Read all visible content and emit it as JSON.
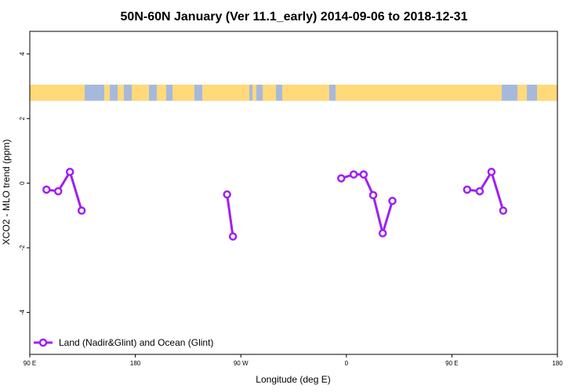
{
  "chart_data": {
    "type": "line",
    "title": "50N-60N January (Ver 11.1_early)   2014-09-06 to 2018-12-31",
    "xlabel": "Longitude (deg E)",
    "ylabel": "XCO2 - MLO trend (ppm)",
    "xlim": [
      90,
      450
    ],
    "ylim": [
      -5.3,
      4.7
    ],
    "x_ticks": [
      {
        "value": 90,
        "label": "90 E"
      },
      {
        "value": 162,
        "label": "180"
      },
      {
        "value": 234,
        "label": "90 W"
      },
      {
        "value": 306,
        "label": "0"
      },
      {
        "value": 378,
        "label": "90 E"
      },
      {
        "value": 450,
        "label": "180"
      }
    ],
    "y_ticks": [
      {
        "value": -4,
        "label": "-4"
      },
      {
        "value": -2,
        "label": "-2"
      },
      {
        "value": 0,
        "label": "0"
      },
      {
        "value": 2,
        "label": "2"
      },
      {
        "value": 4,
        "label": "4"
      }
    ],
    "map_strip": {
      "ymin": 2.55,
      "ymax": 3.05,
      "ocean_color": "#a6b9dc",
      "land_color": "#ffd97a"
    },
    "series": [
      {
        "name": "Land (Nadir&Glint) and Ocean (Glint)",
        "color": "#a020f0",
        "segments": [
          [
            [
              101.4,
              -0.2
            ],
            [
              109.4,
              -0.25
            ],
            [
              117.4,
              0.35
            ],
            [
              125.4,
              -0.85
            ]
          ],
          [
            [
              224.6,
              -0.35
            ],
            [
              228.6,
              -1.65
            ]
          ],
          [
            [
              302.5,
              0.15
            ],
            [
              311.0,
              0.27
            ],
            [
              317.8,
              0.27
            ],
            [
              324.3,
              -0.37
            ],
            [
              330.8,
              -1.55
            ],
            [
              337.4,
              -0.55
            ]
          ],
          [
            [
              388.4,
              -0.2
            ],
            [
              397.0,
              -0.25
            ],
            [
              405.0,
              0.35
            ],
            [
              413.0,
              -0.85
            ]
          ]
        ]
      }
    ],
    "legend_position": "bottom-left",
    "grid": false
  }
}
